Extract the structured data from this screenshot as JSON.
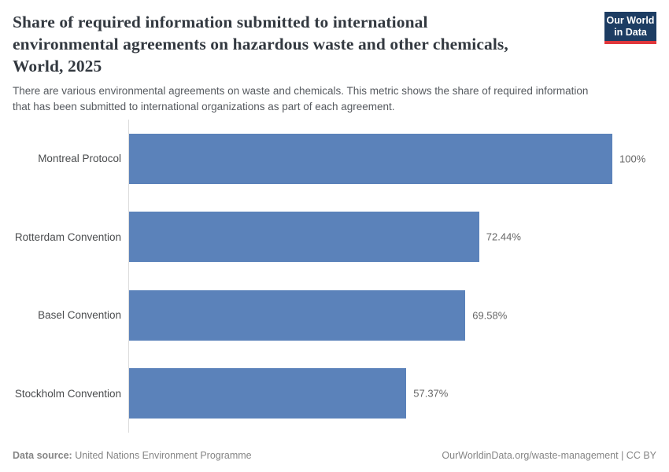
{
  "header": {
    "title_lines": [
      "Share of required information submitted to international",
      "environmental agreements on hazardous waste and other chemicals,",
      "World, 2025"
    ],
    "subtitle_lines": [
      "There are various environmental agreements on waste and chemicals. This metric shows the share of required information",
      "that has been submitted to international organizations as part of each agreement."
    ],
    "logo": {
      "line1": "Our World",
      "line2": "in Data",
      "bg_color": "#1d3d63",
      "accent_color": "#e0373c"
    }
  },
  "chart_data": {
    "type": "bar",
    "orientation": "horizontal",
    "title": "Share of required information submitted to international environmental agreements on hazardous waste and other chemicals, World, 2025",
    "subtitle": "There are various environmental agreements on waste and chemicals. This metric shows the share of required information that has been submitted to international organizations as part of each agreement.",
    "categories": [
      "Montreal Protocol",
      "Rotterdam Convention",
      "Basel Convention",
      "Stockholm Convention"
    ],
    "values": [
      100,
      72.44,
      69.58,
      57.37
    ],
    "value_labels": [
      "100%",
      "72.44%",
      "69.58%",
      "57.37%"
    ],
    "unit": "%",
    "xlabel": "",
    "ylabel": "",
    "xlim": [
      0,
      100
    ],
    "grid": false,
    "legend": false,
    "bar_color": "#5b82ba",
    "axis_line_color": "#dcdcdc"
  },
  "footer": {
    "source_label": "Data source:",
    "source_value": "United Nations Environment Programme",
    "credit_link": "OurWorldinData.org/waste-management",
    "credit_suffix": " | CC BY"
  }
}
